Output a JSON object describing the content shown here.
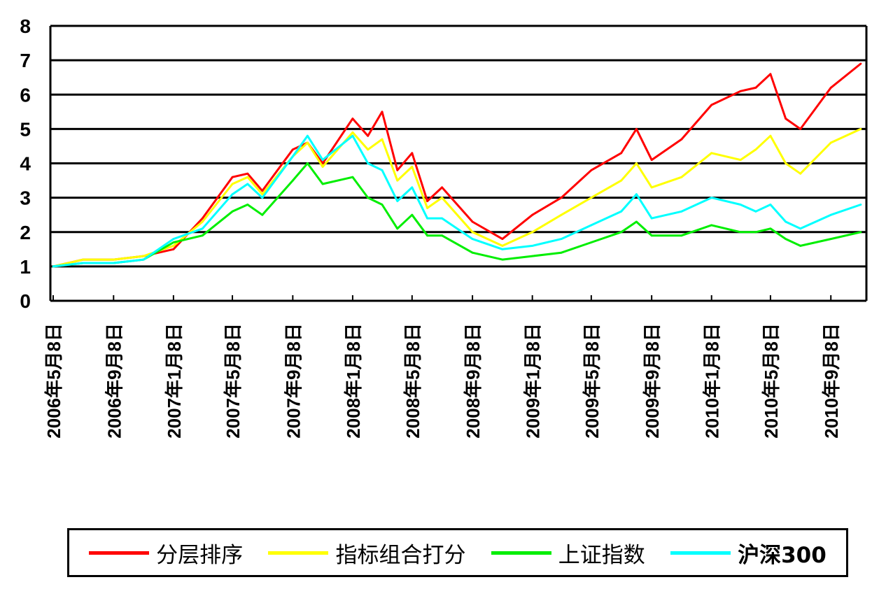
{
  "chart_data": {
    "type": "line",
    "title": "",
    "xlabel": "",
    "ylabel": "",
    "ylim": [
      0,
      8
    ],
    "yticks": [
      "0",
      "1",
      "2",
      "3",
      "4",
      "5",
      "6",
      "7",
      "8"
    ],
    "grid": "horizontal",
    "legend_position": "bottom",
    "x_tick_labels": [
      "2006年5月8日",
      "2006年9月8日",
      "2007年1月8日",
      "2007年5月8日",
      "2007年9月8日",
      "2008年1月8日",
      "2008年5月8日",
      "2008年9月8日",
      "2009年1月8日",
      "2009年5月8日",
      "2009年9月8日",
      "2010年1月8日",
      "2010年5月8日",
      "2010年9月8日"
    ],
    "x": [
      "2006-05-08",
      "2006-07-08",
      "2006-09-08",
      "2006-11-08",
      "2007-01-08",
      "2007-03-08",
      "2007-05-08",
      "2007-06-08",
      "2007-07-08",
      "2007-09-08",
      "2007-10-08",
      "2007-11-08",
      "2008-01-08",
      "2008-02-08",
      "2008-03-08",
      "2008-04-08",
      "2008-05-08",
      "2008-06-08",
      "2008-07-08",
      "2008-09-08",
      "2008-11-08",
      "2009-01-08",
      "2009-03-08",
      "2009-05-08",
      "2009-07-08",
      "2009-08-08",
      "2009-09-08",
      "2009-11-08",
      "2010-01-08",
      "2010-03-08",
      "2010-04-08",
      "2010-05-08",
      "2010-06-08",
      "2010-07-08",
      "2010-09-08",
      "2010-11-08"
    ],
    "series": [
      {
        "name": "分层排序",
        "color": "#ff0000",
        "values": [
          1.0,
          1.2,
          1.2,
          1.3,
          1.5,
          2.4,
          3.6,
          3.7,
          3.2,
          4.4,
          4.6,
          4.0,
          5.3,
          4.8,
          5.5,
          3.8,
          4.3,
          2.9,
          3.3,
          2.3,
          1.8,
          2.5,
          3.0,
          3.8,
          4.3,
          5.0,
          4.1,
          4.7,
          5.7,
          6.1,
          6.2,
          6.6,
          5.3,
          5.0,
          6.2,
          6.9
        ]
      },
      {
        "name": "指标组合打分",
        "color": "#ffff00",
        "values": [
          1.0,
          1.2,
          1.2,
          1.3,
          1.6,
          2.3,
          3.4,
          3.6,
          3.1,
          4.2,
          4.6,
          3.9,
          4.9,
          4.4,
          4.7,
          3.5,
          3.9,
          2.7,
          3.0,
          2.0,
          1.6,
          2.0,
          2.5,
          3.0,
          3.5,
          4.0,
          3.3,
          3.6,
          4.3,
          4.1,
          4.4,
          4.8,
          4.0,
          3.7,
          4.6,
          5.0
        ]
      },
      {
        "name": "上证指数",
        "color": "#00ee00",
        "values": [
          1.0,
          1.1,
          1.1,
          1.2,
          1.7,
          1.9,
          2.6,
          2.8,
          2.5,
          3.5,
          4.0,
          3.4,
          3.6,
          3.0,
          2.8,
          2.1,
          2.5,
          1.9,
          1.9,
          1.4,
          1.2,
          1.3,
          1.4,
          1.7,
          2.0,
          2.3,
          1.9,
          1.9,
          2.2,
          2.0,
          2.0,
          2.1,
          1.8,
          1.6,
          1.8,
          2.0
        ]
      },
      {
        "name": "沪深300",
        "color": "#00ffff",
        "values": [
          1.0,
          1.1,
          1.1,
          1.2,
          1.8,
          2.1,
          3.1,
          3.4,
          3.0,
          4.2,
          4.8,
          4.1,
          4.8,
          4.0,
          3.8,
          2.9,
          3.3,
          2.4,
          2.4,
          1.8,
          1.5,
          1.6,
          1.8,
          2.2,
          2.6,
          3.1,
          2.4,
          2.6,
          3.0,
          2.8,
          2.6,
          2.8,
          2.3,
          2.1,
          2.5,
          2.8
        ]
      }
    ]
  }
}
